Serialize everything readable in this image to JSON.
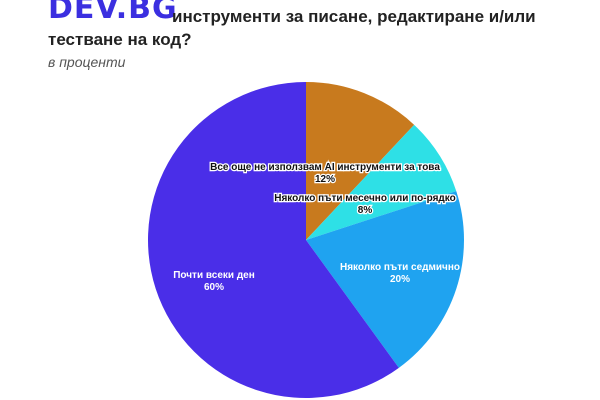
{
  "header": {
    "logo": "DEV.BG",
    "title_line1": "инструменти за писане, редактиране и/или",
    "title_line2": "тестване на код?",
    "subtitle": "в проценти"
  },
  "chart_data": {
    "type": "pie",
    "title": "инструменти за писане, редактиране и/или тестване на код?",
    "subtitle": "в проценти",
    "slices": [
      {
        "label": "Все още не използвам AI инструменти за това",
        "value": 12,
        "display": "12%",
        "color": "#c87a1e"
      },
      {
        "label": "Няколко пъти месечно или по-рядко",
        "value": 8,
        "display": "8%",
        "color": "#2ee0e6"
      },
      {
        "label": "Няколко пъти седмично",
        "value": 20,
        "display": "20%",
        "color": "#1fa3f0"
      },
      {
        "label": "Почти всеки ден",
        "value": 60,
        "display": "60%",
        "color": "#4a2ee8"
      }
    ]
  }
}
